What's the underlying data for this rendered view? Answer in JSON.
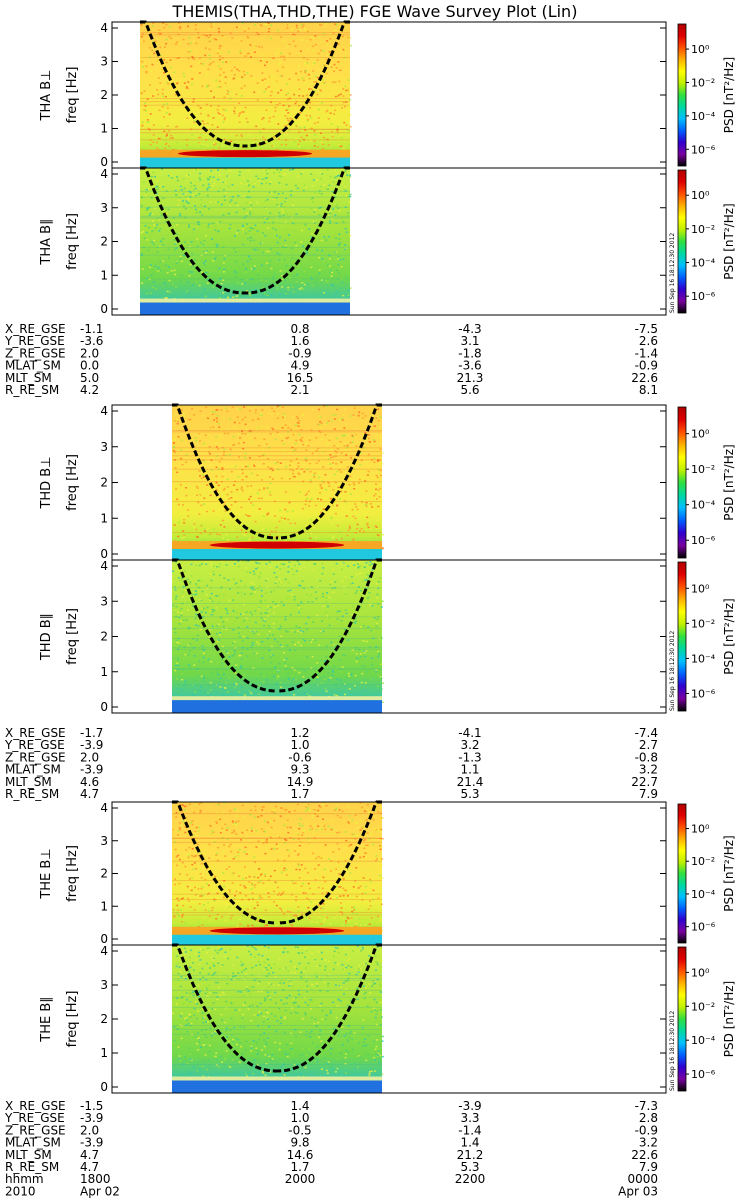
{
  "title": "THEMIS(THA,THD,THE) FGE Wave Survey Plot (Lin)",
  "stamp": "Sun Sep 16 18:12:30 2012",
  "colorbar": {
    "label": "PSD [nT²/Hz]",
    "ticks": [
      "10⁰",
      "10⁻²",
      "10⁻⁴",
      "10⁻⁶"
    ],
    "tick_exponents": [
      0,
      -2,
      -4,
      -6
    ],
    "colors": [
      "#000000",
      "#7a00a0",
      "#3000d0",
      "#0060ff",
      "#00c0ff",
      "#00d8a0",
      "#30e040",
      "#c0f000",
      "#ffff00",
      "#ffb000",
      "#ff5000",
      "#e00000",
      "#b00000"
    ]
  },
  "chart_data": [
    {
      "type": "heatmap",
      "probe": "THA",
      "ylabel_component": "THA B⊥",
      "ylabel": "freq [Hz]",
      "ylim": [
        0,
        4
      ],
      "yticks": [
        "0",
        "1",
        "2",
        "3",
        "4"
      ],
      "x_start": "1710",
      "x_end": "1920",
      "bright_band_hz": 0.25
    },
    {
      "type": "heatmap",
      "probe": "THA",
      "ylabel_component": "THA B∥",
      "ylabel": "freq [Hz]",
      "ylim": [
        0,
        4
      ],
      "yticks": [
        "0",
        "1",
        "2",
        "3",
        "4"
      ],
      "x_start": "1710",
      "x_end": "1920",
      "bright_band_hz": 0.25
    },
    {
      "type": "heatmap",
      "probe": "THD",
      "ylabel_component": "THD B⊥",
      "ylabel": "freq [Hz]",
      "ylim": [
        0,
        4
      ],
      "yticks": [
        "0",
        "1",
        "2",
        "3",
        "4"
      ],
      "x_start": "1730",
      "x_end": "1940",
      "bright_band_hz": 0.25
    },
    {
      "type": "heatmap",
      "probe": "THD",
      "ylabel_component": "THD B∥",
      "ylabel": "freq [Hz]",
      "ylim": [
        0,
        4
      ],
      "yticks": [
        "0",
        "1",
        "2",
        "3",
        "4"
      ],
      "x_start": "1730",
      "x_end": "1940",
      "bright_band_hz": 0.25
    },
    {
      "type": "heatmap",
      "probe": "THE",
      "ylabel_component": "THE B⊥",
      "ylabel": "freq [Hz]",
      "ylim": [
        0,
        4
      ],
      "yticks": [
        "0",
        "1",
        "2",
        "3",
        "4"
      ],
      "x_start": "1730",
      "x_end": "1940",
      "bright_band_hz": 0.25
    },
    {
      "type": "heatmap",
      "probe": "THE",
      "ylabel_component": "THE B∥",
      "ylabel": "freq [Hz]",
      "ylim": [
        0,
        4
      ],
      "yticks": [
        "0",
        "1",
        "2",
        "3",
        "4"
      ],
      "x_start": "1730",
      "x_end": "1940",
      "bright_band_hz": 0.25
    }
  ],
  "ephemeris": [
    {
      "labels": [
        "X_RE_GSE",
        "Y_RE_GSE",
        "Z_RE_GSE",
        "MLAT_SM",
        "MLT_SM",
        "R_RE_SM"
      ],
      "cols": [
        [
          "-1.1",
          "-3.6",
          "2.0",
          "0.0",
          "5.0",
          "4.2"
        ],
        [
          "0.8",
          "1.6",
          "-0.9",
          "4.9",
          "16.5",
          "2.1"
        ],
        [
          "-4.3",
          "3.1",
          "-1.8",
          "-3.6",
          "21.3",
          "5.6"
        ],
        [
          "-7.5",
          "2.6",
          "-1.4",
          "-0.9",
          "22.6",
          "8.1"
        ]
      ]
    },
    {
      "labels": [
        "X_RE_GSE",
        "Y_RE_GSE",
        "Z_RE_GSE",
        "MLAT_SM",
        "MLT_SM",
        "R_RE_SM"
      ],
      "cols": [
        [
          "-1.7",
          "-3.9",
          "2.0",
          "-3.9",
          "4.6",
          "4.7"
        ],
        [
          "1.2",
          "1.0",
          "-0.6",
          "9.3",
          "14.9",
          "1.7"
        ],
        [
          "-4.1",
          "3.2",
          "-1.3",
          "1.1",
          "21.4",
          "5.3"
        ],
        [
          "-7.4",
          "2.7",
          "-0.8",
          "3.2",
          "22.7",
          "7.9"
        ]
      ]
    },
    {
      "labels": [
        "X_RE_GSE",
        "Y_RE_GSE",
        "Z_RE_GSE",
        "MLAT_SM",
        "MLT_SM",
        "R_RE_SM",
        "hhmm",
        "2010"
      ],
      "cols": [
        [
          "-1.5",
          "-3.9",
          "2.0",
          "-3.9",
          "4.7",
          "4.7",
          "1800",
          "Apr 02"
        ],
        [
          "1.4",
          "1.0",
          "-0.5",
          "9.8",
          "14.6",
          "1.7",
          "2000",
          ""
        ],
        [
          "-3.9",
          "3.3",
          "-1.4",
          "1.4",
          "21.2",
          "5.3",
          "2200",
          ""
        ],
        [
          "-7.3",
          "2.8",
          "-0.9",
          "3.2",
          "22.6",
          "7.9",
          "0000",
          "Apr 03"
        ]
      ]
    }
  ]
}
